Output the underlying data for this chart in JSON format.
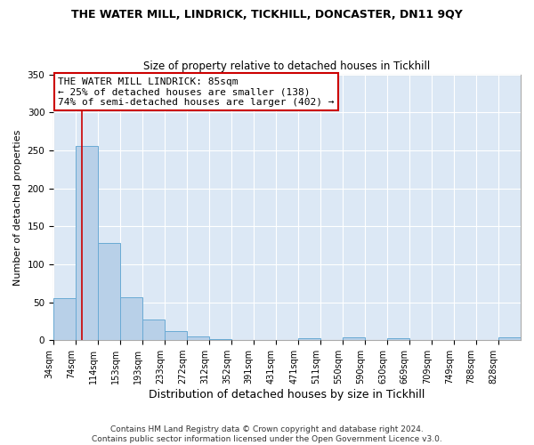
{
  "title": "THE WATER MILL, LINDRICK, TICKHILL, DONCASTER, DN11 9QY",
  "subtitle": "Size of property relative to detached houses in Tickhill",
  "xlabel": "Distribution of detached houses by size in Tickhill",
  "ylabel": "Number of detached properties",
  "bar_labels": [
    "34sqm",
    "74sqm",
    "114sqm",
    "153sqm",
    "193sqm",
    "233sqm",
    "272sqm",
    "312sqm",
    "352sqm",
    "391sqm",
    "431sqm",
    "471sqm",
    "511sqm",
    "550sqm",
    "590sqm",
    "630sqm",
    "669sqm",
    "709sqm",
    "749sqm",
    "788sqm",
    "828sqm"
  ],
  "bar_heights": [
    55,
    256,
    128,
    57,
    27,
    12,
    5,
    1,
    0,
    0,
    0,
    3,
    0,
    4,
    0,
    3,
    0,
    0,
    0,
    0,
    4
  ],
  "bar_color": "#b8d0e8",
  "bar_edge_color": "#6aaad4",
  "vline_x": 85,
  "vline_color": "#cc0000",
  "annotation_title": "THE WATER MILL LINDRICK: 85sqm",
  "annotation_line1": "← 25% of detached houses are smaller (138)",
  "annotation_line2": "74% of semi-detached houses are larger (402) →",
  "annotation_box_facecolor": "#ffffff",
  "annotation_box_edgecolor": "#cc0000",
  "ylim": [
    0,
    350
  ],
  "yticks": [
    0,
    50,
    100,
    150,
    200,
    250,
    300,
    350
  ],
  "bin_edges": [
    34,
    74,
    114,
    153,
    193,
    233,
    272,
    312,
    352,
    391,
    431,
    471,
    511,
    550,
    590,
    630,
    669,
    709,
    749,
    788,
    828,
    868
  ],
  "footer_line1": "Contains HM Land Registry data © Crown copyright and database right 2024.",
  "footer_line2": "Contains public sector information licensed under the Open Government Licence v3.0.",
  "fig_bg_color": "#ffffff",
  "plot_bg_color": "#dce8f5",
  "grid_color": "#ffffff",
  "title_fontsize": 9,
  "subtitle_fontsize": 8.5,
  "xlabel_fontsize": 9,
  "ylabel_fontsize": 8,
  "tick_fontsize": 7,
  "footer_fontsize": 6.5
}
